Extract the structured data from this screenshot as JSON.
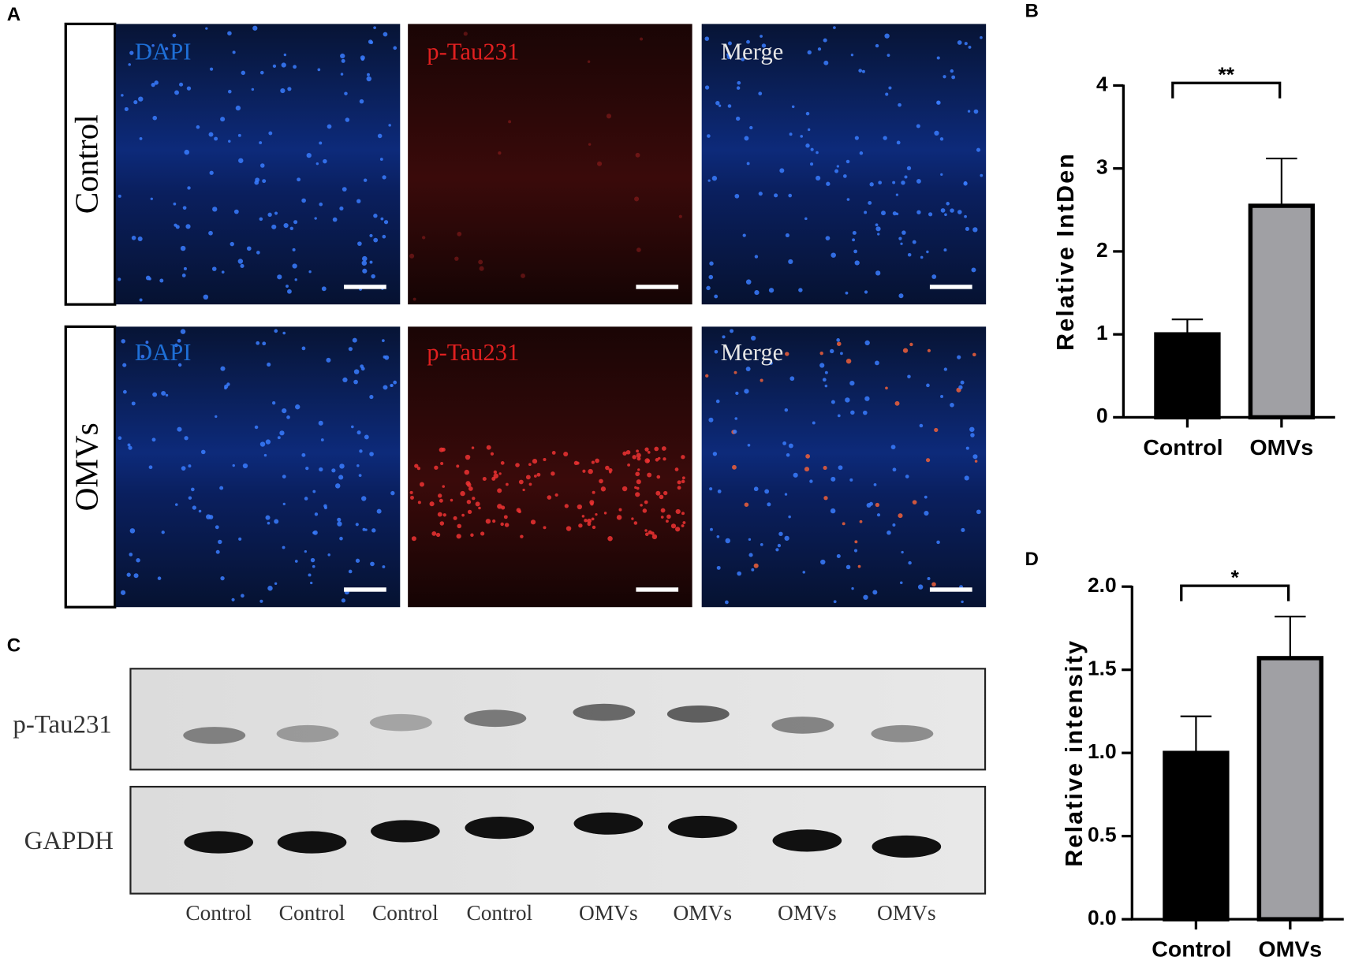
{
  "figure": {
    "panel_labels": [
      "A",
      "B",
      "C",
      "D"
    ],
    "if_rows": [
      "Control",
      "OMVs"
    ],
    "if_channels": [
      "DAPI",
      "p-Tau231",
      "Merge"
    ],
    "blot_rows": [
      "p-Tau231",
      "GAPDH"
    ],
    "blot_lanes": [
      "Control",
      "Control",
      "Control",
      "Control",
      "OMVs",
      "OMVs",
      "OMVs",
      "OMVs"
    ]
  },
  "chart_data": [
    {
      "type": "bar",
      "ylabel": "Relative IntDen",
      "categories": [
        "Control",
        "OMVs"
      ],
      "values": [
        1,
        2.55
      ],
      "errors": [
        0.18,
        0.57
      ],
      "colors": [
        "#000000",
        "#a0a0a4"
      ],
      "ylim": [
        0,
        4
      ],
      "yticks": [
        0,
        1,
        2,
        3,
        4
      ],
      "annotation": "**"
    },
    {
      "type": "bar",
      "ylabel": "Relative intensity",
      "categories": [
        "Control",
        "OMVs"
      ],
      "values": [
        1,
        1.57
      ],
      "errors": [
        0.22,
        0.25
      ],
      "colors": [
        "#000000",
        "#a0a0a4"
      ],
      "ylim": [
        0,
        2
      ],
      "yticks": [
        {
          "value": 0,
          "label": "0.0"
        },
        0.5,
        {
          "value": 1,
          "label": "1.0"
        },
        1.5,
        {
          "value": 2,
          "label": "2.0"
        }
      ],
      "annotation": "*"
    }
  ]
}
